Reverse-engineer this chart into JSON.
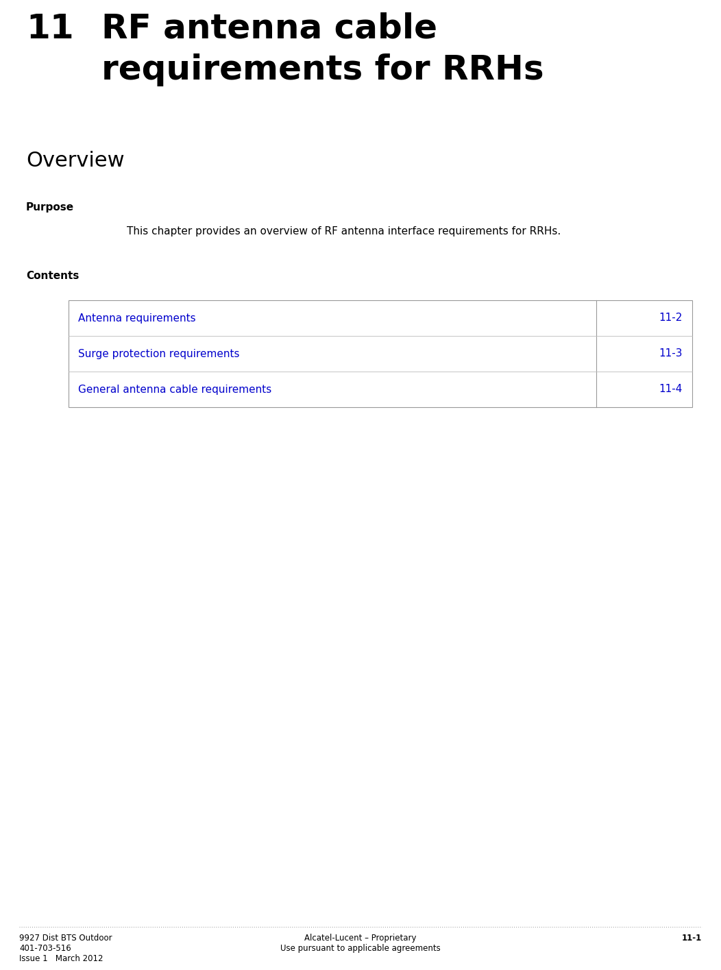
{
  "chapter_num": "11",
  "chapter_title_line1": "RF antenna cable",
  "chapter_title_line2": "requirements for RRHs",
  "section_title": "Overview",
  "purpose_label": "Purpose",
  "purpose_text": "This chapter provides an overview of RF antenna interface requirements for RRHs.",
  "contents_label": "Contents",
  "table_rows": [
    {
      "label": "Antenna requirements",
      "page": "11-2"
    },
    {
      "label": "Surge protection requirements",
      "page": "11-3"
    },
    {
      "label": "General antenna cable requirements",
      "page": "11-4"
    }
  ],
  "footer_left_lines": [
    "9927 Dist BTS Outdoor",
    "401-703-516",
    "Issue 1   March 2012"
  ],
  "footer_center_lines": [
    "Alcatel-Lucent – Proprietary",
    "Use pursuant to applicable agreements"
  ],
  "footer_right": "11-1",
  "bg_color": "#ffffff",
  "text_color_black": "#000000",
  "text_color_blue": "#0000cc",
  "chapter_num_fontsize": 36,
  "chapter_title_fontsize": 36,
  "section_title_fontsize": 22,
  "label_fontsize": 11,
  "purpose_text_fontsize": 11,
  "table_text_fontsize": 11,
  "footer_fontsize": 8.5,
  "table_border_color": "#999999",
  "table_row_separator_color": "#bbbbbb"
}
